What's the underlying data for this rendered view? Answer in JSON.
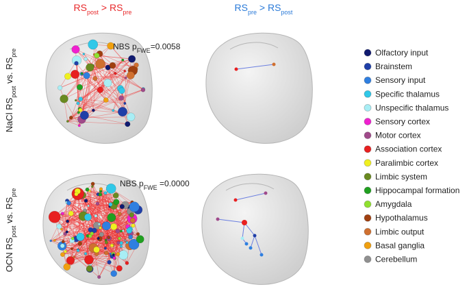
{
  "columns": [
    {
      "parts": [
        "RS",
        "post",
        " > RS",
        "pre"
      ],
      "color": "#e8282a"
    },
    {
      "parts": [
        "RS",
        "pre",
        " > RS",
        "post"
      ],
      "color": "#2a7ad8"
    }
  ],
  "rows": [
    {
      "parts": [
        "NaCl RS",
        "post",
        " vs. RS",
        "pre"
      ],
      "stat": [
        "NBS p",
        "FWE",
        "=0.0058"
      ]
    },
    {
      "parts": [
        "OCN RS",
        "post",
        " vs. RS",
        "pre"
      ],
      "stat": [
        "NBS p",
        "FWE",
        " =0.0000"
      ]
    }
  ],
  "legend": [
    {
      "label": "Olfactory input",
      "color": "#101a70"
    },
    {
      "label": "Brainstem",
      "color": "#1f3fa8"
    },
    {
      "label": "Sensory input",
      "color": "#2f7fe0"
    },
    {
      "label": "Specific thalamus",
      "color": "#30c8e8"
    },
    {
      "label": "Unspecific thalamus",
      "color": "#a8eef5"
    },
    {
      "label": "Sensory cortex",
      "color": "#f020d0"
    },
    {
      "label": "Motor cortex",
      "color": "#a04a8a"
    },
    {
      "label": "Association cortex",
      "color": "#e82020"
    },
    {
      "label": "Paralimbic cortex",
      "color": "#f0f020"
    },
    {
      "label": "Limbic system",
      "color": "#6a8a20"
    },
    {
      "label": "Hippocampal formation",
      "color": "#20a020"
    },
    {
      "label": "Amygdala",
      "color": "#90e030"
    },
    {
      "label": "Hypothalamus",
      "color": "#a04010"
    },
    {
      "label": "Limbic output",
      "color": "#d07030"
    },
    {
      "label": "Basal ganglia",
      "color": "#f0a010"
    },
    {
      "label": "Cerebellum",
      "color": "#909090"
    }
  ]
}
